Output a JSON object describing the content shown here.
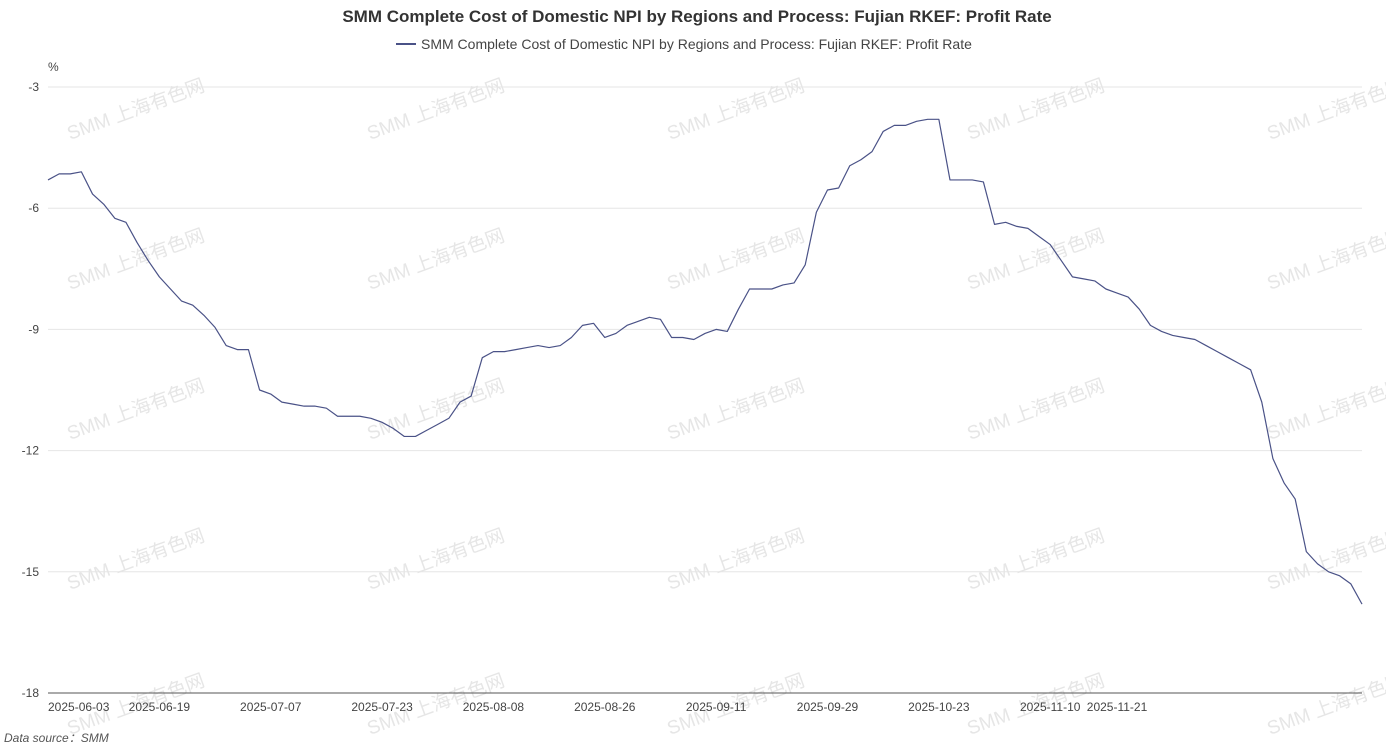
{
  "chart_data": {
    "type": "line",
    "title": "SMM Complete Cost of Domestic NPI by Regions and Process: Fujian RKEF: Profit Rate",
    "legend": {
      "placement": "top-center",
      "entries": [
        "SMM Complete Cost of Domestic NPI by Regions and Process: Fujian RKEF: Profit Rate"
      ]
    },
    "ylabel": "%",
    "xlabel": "",
    "ylim": [
      -18,
      -3
    ],
    "yticks": [
      -3,
      -6,
      -9,
      -12,
      -15,
      -18
    ],
    "xtick_labels": [
      "2025-06-03",
      "2025-06-19",
      "2025-07-07",
      "2025-07-23",
      "2025-08-08",
      "2025-08-26",
      "2025-09-11",
      "2025-09-29",
      "2025-10-23",
      "2025-11-10",
      "2025-11-21"
    ],
    "xtick_positions": [
      0,
      10,
      20,
      30,
      40,
      50,
      60,
      70,
      80,
      90,
      96
    ],
    "grid": true,
    "line_color": "#4a5287",
    "series": [
      {
        "name": "SMM Complete Cost of Domestic NPI by Regions and Process: Fujian RKEF: Profit Rate",
        "values": [
          -5.3,
          -5.15,
          -5.15,
          -5.1,
          -5.65,
          -5.9,
          -6.25,
          -6.35,
          -6.85,
          -7.3,
          -7.7,
          -8.0,
          -8.3,
          -8.4,
          -8.65,
          -8.95,
          -9.4,
          -9.5,
          -9.5,
          -10.5,
          -10.6,
          -10.8,
          -10.85,
          -10.9,
          -10.9,
          -10.95,
          -11.15,
          -11.15,
          -11.15,
          -11.2,
          -11.3,
          -11.45,
          -11.65,
          -11.65,
          -11.5,
          -11.35,
          -11.2,
          -10.8,
          -10.65,
          -9.7,
          -9.55,
          -9.55,
          -9.5,
          -9.45,
          -9.4,
          -9.45,
          -9.4,
          -9.2,
          -8.9,
          -8.85,
          -9.2,
          -9.1,
          -8.9,
          -8.8,
          -8.7,
          -8.75,
          -9.2,
          -9.2,
          -9.25,
          -9.1,
          -9.0,
          -9.05,
          -8.5,
          -8.0,
          -8.0,
          -8.0,
          -7.9,
          -7.85,
          -7.4,
          -6.1,
          -5.55,
          -5.5,
          -4.95,
          -4.8,
          -4.6,
          -4.1,
          -3.95,
          -3.95,
          -3.85,
          -3.8,
          -3.8,
          -5.3,
          -5.3,
          -5.3,
          -5.35,
          -6.4,
          -6.35,
          -6.45,
          -6.5,
          -6.7,
          -6.9,
          -7.3,
          -7.7,
          -7.75,
          -7.8,
          -8.0,
          -8.1,
          -8.2,
          -8.5,
          -8.9,
          -9.05,
          -9.15,
          -9.2,
          -9.25,
          -9.4,
          -9.55,
          -9.7,
          -9.85,
          -10.0,
          -10.8,
          -12.2,
          -12.8,
          -13.2,
          -14.5,
          -14.8,
          -15.0,
          -15.1,
          -15.3,
          -15.8
        ]
      }
    ]
  },
  "watermark": {
    "text": "SMM 上海有色网"
  },
  "footer": {
    "source_label": "Data source：",
    "source_value": "SMM"
  }
}
